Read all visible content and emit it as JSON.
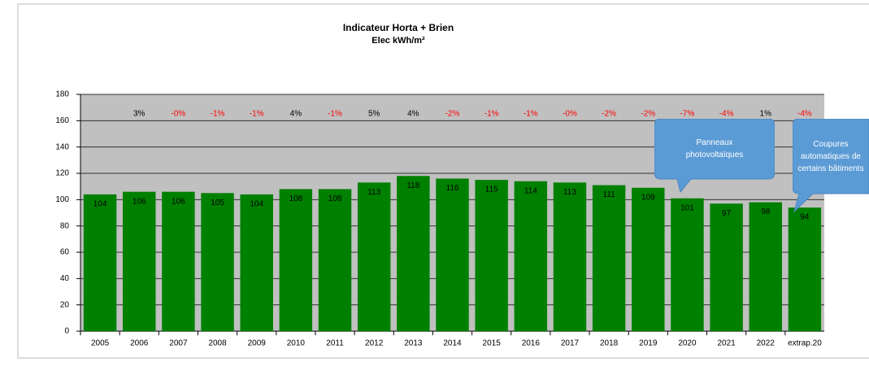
{
  "chart_data": {
    "type": "bar",
    "title": "Indicateur Horta + Brien",
    "subtitle": "Elec kWh/m²",
    "categories": [
      "2005",
      "2006",
      "2007",
      "2008",
      "2009",
      "2010",
      "2011",
      "2012",
      "2013",
      "2014",
      "2015",
      "2016",
      "2017",
      "2018",
      "2019",
      "2020",
      "2021",
      "2022",
      "extrap.20"
    ],
    "values": [
      104,
      106,
      106,
      105,
      104,
      108,
      108,
      113,
      118,
      116,
      115,
      114,
      113,
      111,
      109,
      101,
      97,
      98,
      94
    ],
    "change_labels": [
      null,
      "3%",
      "-0%",
      "-1%",
      "-1%",
      "4%",
      "-1%",
      "5%",
      "4%",
      "-2%",
      "-1%",
      "-1%",
      "-0%",
      "-2%",
      "-2%",
      "-7%",
      "-4%",
      "1%",
      "-4%"
    ],
    "color": "#008000",
    "ylim": [
      0,
      180
    ],
    "yticks": [
      0,
      20,
      40,
      60,
      80,
      100,
      120,
      140,
      160,
      180
    ],
    "grid": true,
    "annotations": [
      "Panneaux photovoltaïques",
      "Coupures automatiques de certains bâtiments"
    ]
  }
}
